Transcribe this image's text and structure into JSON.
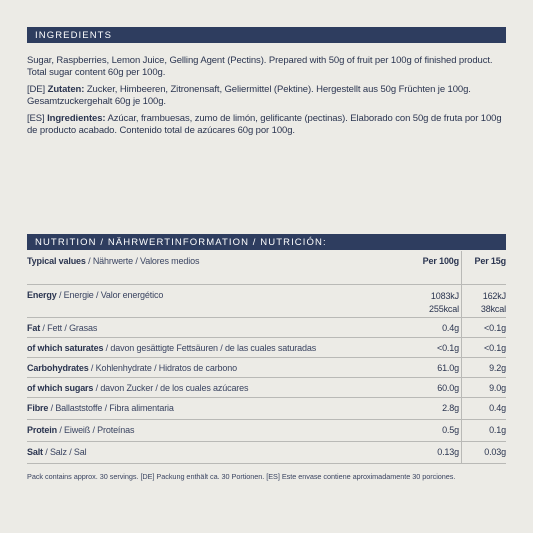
{
  "ingredients": {
    "header": "INGREDIENTS",
    "en_line1": "Sugar, Raspberries, Lemon Juice, Gelling Agent (Pectins). Prepared with 50g of fruit per 100g of finished product.",
    "en_line2": "Total sugar content 60g per 100g.",
    "de_tag": "[DE]",
    "de_label": "Zutaten:",
    "de_line1": "Zucker, Himbeeren, Zitronensaft, Geliermittel (Pektine). Hergestellt aus 50g Früchten je 100g.",
    "de_line2": "Gesamtzuckergehalt 60g je 100g.",
    "es_tag": "[ES]",
    "es_label": "Ingredientes:",
    "es_line1": "Azúcar, frambuesas, zumo de limón, gelificante (pectinas). Elaborado con 50g de fruta por 100g",
    "es_line2": "de producto acabado. Contenido total de azúcares 60g por 100g."
  },
  "nutrition": {
    "header": "NUTRITION / NÄHRWERTINFORMATION / NUTRICIÓN:",
    "header_row": {
      "bold": "Typical values",
      "rest": " / Nährwerte / Valores medios",
      "col1": "Per 100g",
      "col2": "Per 15g"
    },
    "energy": {
      "bold": "Energy",
      "rest": " / Energie / Valor energético",
      "per100_kj": "1083kJ",
      "per100_kcal": "255kcal",
      "per15_kj": "162kJ",
      "per15_kcal": "38kcal"
    },
    "rows": [
      {
        "bold": "Fat",
        "rest": " / Fett / Grasas",
        "per100": "0.4g",
        "per15": "<0.1g"
      },
      {
        "bold": "of which saturates",
        "rest": " / davon gesättigte Fettsäuren / de las cuales saturadas",
        "per100": "<0.1g",
        "per15": "<0.1g"
      },
      {
        "bold": "Carbohydrates",
        "rest": " / Kohlenhydrate / Hidratos de carbono",
        "per100": "61.0g",
        "per15": "9.2g"
      },
      {
        "bold": "of which sugars",
        "rest": " / davon Zucker / de los cuales azúcares",
        "per100": "60.0g",
        "per15": "9.0g"
      },
      {
        "bold": "Fibre",
        "rest": " / Ballaststoffe / Fibra alimentaria",
        "per100": "2.8g",
        "per15": "0.4g"
      },
      {
        "bold": "Protein",
        "rest": " / Eiweiß / Proteínas",
        "per100": "0.5g",
        "per15": "0.1g"
      },
      {
        "bold": "Salt",
        "rest": " / Salz / Sal",
        "per100": "0.13g",
        "per15": "0.03g"
      }
    ]
  },
  "footnote": "Pack contains approx. 30 servings. [DE] Packung enthält ca. 30 Portionen. [ES] Este envase contiene aproximadamente 30 porciones."
}
